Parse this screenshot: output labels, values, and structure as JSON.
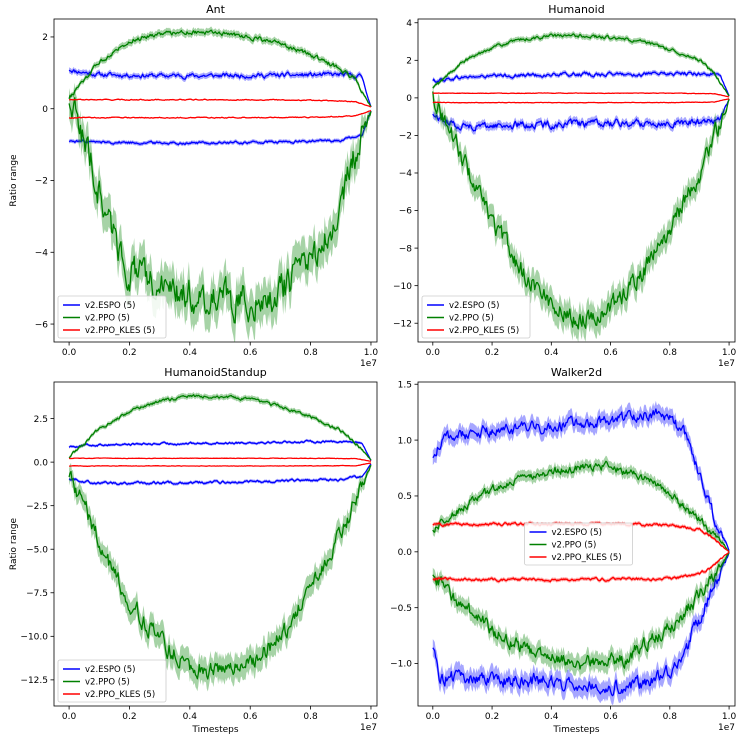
{
  "chart_data": [
    {
      "type": "line",
      "title": "Ant",
      "xlabel": "",
      "ylabel": "Ratio range",
      "x_scale_label": "1e7",
      "xlim": [
        -0.05,
        1.02
      ],
      "ylim": [
        -6.5,
        2.5
      ],
      "x_ticks": [
        0.0,
        0.2,
        0.4,
        0.6,
        0.8,
        1.0
      ],
      "x_tick_labels": [
        "0.0",
        "0.2",
        "0.4",
        "0.6",
        "0.8",
        "1.0"
      ],
      "y_ticks": [
        -6,
        -4,
        -2,
        0,
        2
      ],
      "y_tick_labels": [
        "−6",
        "−4",
        "−2",
        "0",
        "2"
      ],
      "legend_position": "lower-left",
      "series": [
        {
          "name": "v2.ESPO (5)",
          "color": "#0000ff",
          "band": "upper",
          "x": [
            0,
            0.02,
            0.1,
            0.3,
            0.5,
            0.7,
            0.9,
            0.97,
            1.0
          ],
          "y": [
            1.1,
            1.05,
            0.95,
            0.92,
            0.92,
            0.93,
            0.95,
            0.9,
            0.05
          ],
          "noise": 0.05
        },
        {
          "name": "v2.ESPO (5)",
          "color": "#0000ff",
          "band": "lower",
          "x": [
            0,
            0.1,
            0.3,
            0.5,
            0.7,
            0.9,
            0.97,
            1.0
          ],
          "y": [
            -0.9,
            -0.93,
            -0.95,
            -0.95,
            -0.93,
            -0.88,
            -0.75,
            -0.05
          ],
          "noise": 0.03
        },
        {
          "name": "v2.PPO (5)",
          "color": "#008000",
          "band": "upper",
          "x": [
            0,
            0.1,
            0.2,
            0.3,
            0.4,
            0.5,
            0.6,
            0.7,
            0.8,
            0.9,
            0.95,
            1.0
          ],
          "y": [
            0.3,
            1.3,
            1.9,
            2.1,
            2.15,
            2.1,
            2.0,
            1.8,
            1.5,
            1.1,
            0.8,
            0.05
          ],
          "noise": 0.05
        },
        {
          "name": "v2.PPO (5)",
          "color": "#008000",
          "band": "lower",
          "x": [
            0,
            0.05,
            0.1,
            0.15,
            0.2,
            0.3,
            0.4,
            0.5,
            0.6,
            0.7,
            0.8,
            0.85,
            0.9,
            0.95,
            1.0
          ],
          "y": [
            0.3,
            -0.8,
            -2.3,
            -3.6,
            -4.5,
            -5.0,
            -5.2,
            -5.3,
            -5.4,
            -5.1,
            -4.3,
            -3.6,
            -2.6,
            -1.2,
            -0.05
          ],
          "noise": 0.35
        },
        {
          "name": "v2.PPO_KLES (5)",
          "color": "#ff0000",
          "band": "upper",
          "x": [
            0,
            0.2,
            0.5,
            0.8,
            0.95,
            1.0
          ],
          "y": [
            0.25,
            0.25,
            0.25,
            0.24,
            0.2,
            0.05
          ],
          "noise": 0.01
        },
        {
          "name": "v2.PPO_KLES (5)",
          "color": "#ff0000",
          "band": "lower",
          "x": [
            0,
            0.2,
            0.5,
            0.8,
            0.95,
            1.0
          ],
          "y": [
            -0.25,
            -0.25,
            -0.25,
            -0.24,
            -0.2,
            -0.05
          ],
          "noise": 0.01
        }
      ],
      "legend": [
        {
          "label": "v2.ESPO (5)",
          "color": "#0000ff"
        },
        {
          "label": "v2.PPO (5)",
          "color": "#008000"
        },
        {
          "label": "v2.PPO_KLES (5)",
          "color": "#ff0000"
        }
      ]
    },
    {
      "type": "line",
      "title": "Humanoid",
      "xlabel": "",
      "ylabel": "",
      "x_scale_label": "1e7",
      "xlim": [
        -0.05,
        1.02
      ],
      "ylim": [
        -13.0,
        4.2
      ],
      "x_ticks": [
        0.0,
        0.2,
        0.4,
        0.6,
        0.8,
        1.0
      ],
      "x_tick_labels": [
        "0.0",
        "0.2",
        "0.4",
        "0.6",
        "0.8",
        "1.0"
      ],
      "y_ticks": [
        -12,
        -10,
        -8,
        -6,
        -4,
        -2,
        0,
        2,
        4
      ],
      "y_tick_labels": [
        "−12",
        "−10",
        "−8",
        "−6",
        "−4",
        "−2",
        "0",
        "2",
        "4"
      ],
      "legend_position": "lower-left",
      "series": [
        {
          "name": "v2.ESPO (5)",
          "color": "#0000ff",
          "band": "upper",
          "x": [
            0,
            0.1,
            0.3,
            0.5,
            0.7,
            0.9,
            0.97,
            1.0
          ],
          "y": [
            0.9,
            1.1,
            1.2,
            1.25,
            1.25,
            1.3,
            1.2,
            0.1
          ],
          "noise": 0.08
        },
        {
          "name": "v2.ESPO (5)",
          "color": "#0000ff",
          "band": "lower",
          "x": [
            0,
            0.05,
            0.1,
            0.3,
            0.5,
            0.7,
            0.9,
            0.97,
            1.0
          ],
          "y": [
            -0.9,
            -1.3,
            -1.5,
            -1.45,
            -1.4,
            -1.35,
            -1.3,
            -1.1,
            -0.1
          ],
          "noise": 0.15
        },
        {
          "name": "v2.PPO (5)",
          "color": "#008000",
          "band": "upper",
          "x": [
            0,
            0.1,
            0.2,
            0.3,
            0.4,
            0.5,
            0.6,
            0.7,
            0.8,
            0.9,
            0.95,
            1.0
          ],
          "y": [
            0.5,
            1.9,
            2.7,
            3.1,
            3.3,
            3.3,
            3.2,
            3.0,
            2.6,
            2.0,
            1.3,
            0.1
          ],
          "noise": 0.07
        },
        {
          "name": "v2.PPO (5)",
          "color": "#008000",
          "band": "lower",
          "x": [
            0,
            0.05,
            0.1,
            0.15,
            0.2,
            0.3,
            0.4,
            0.45,
            0.5,
            0.6,
            0.7,
            0.8,
            0.9,
            0.95,
            1.0
          ],
          "y": [
            0.2,
            -1.5,
            -3.2,
            -5.0,
            -6.6,
            -9.2,
            -10.9,
            -11.5,
            -11.8,
            -11.2,
            -9.5,
            -7.0,
            -4.0,
            -2.1,
            -0.1
          ],
          "noise": 0.4
        },
        {
          "name": "v2.PPO_KLES (5)",
          "color": "#ff0000",
          "band": "upper",
          "x": [
            0,
            0.2,
            0.5,
            0.8,
            0.95,
            1.0
          ],
          "y": [
            0.25,
            0.25,
            0.25,
            0.25,
            0.22,
            0.05
          ],
          "noise": 0.01
        },
        {
          "name": "v2.PPO_KLES (5)",
          "color": "#ff0000",
          "band": "lower",
          "x": [
            0,
            0.2,
            0.5,
            0.8,
            0.95,
            1.0
          ],
          "y": [
            -0.25,
            -0.25,
            -0.25,
            -0.25,
            -0.22,
            -0.05
          ],
          "noise": 0.01
        }
      ],
      "legend": [
        {
          "label": "v2.ESPO (5)",
          "color": "#0000ff"
        },
        {
          "label": "v2.PPO (5)",
          "color": "#008000"
        },
        {
          "label": "v2.PPO_KLES (5)",
          "color": "#ff0000"
        }
      ]
    },
    {
      "type": "line",
      "title": "HumanoidStandup",
      "xlabel": "Timesteps",
      "ylabel": "Ratio range",
      "x_scale_label": "1e7",
      "xlim": [
        -0.05,
        1.02
      ],
      "ylim": [
        -14.0,
        4.6
      ],
      "x_ticks": [
        0.0,
        0.2,
        0.4,
        0.6,
        0.8,
        1.0
      ],
      "x_tick_labels": [
        "0.0",
        "0.2",
        "0.4",
        "0.6",
        "0.8",
        "1.0"
      ],
      "y_ticks": [
        -12.5,
        -10.0,
        -7.5,
        -5.0,
        -2.5,
        0.0,
        2.5
      ],
      "y_tick_labels": [
        "−12.5",
        "−10.0",
        "−7.5",
        "−5.0",
        "−2.5",
        "0.0",
        "2.5"
      ],
      "legend_position": "lower-left",
      "series": [
        {
          "name": "v2.ESPO (5)",
          "color": "#0000ff",
          "band": "upper",
          "x": [
            0,
            0.1,
            0.3,
            0.5,
            0.7,
            0.9,
            0.97,
            1.0
          ],
          "y": [
            0.9,
            1.0,
            1.05,
            1.1,
            1.15,
            1.2,
            1.1,
            0.1
          ],
          "noise": 0.05
        },
        {
          "name": "v2.ESPO (5)",
          "color": "#0000ff",
          "band": "lower",
          "x": [
            0,
            0.05,
            0.1,
            0.3,
            0.5,
            0.7,
            0.9,
            0.97,
            1.0
          ],
          "y": [
            -0.9,
            -1.1,
            -1.2,
            -1.2,
            -1.15,
            -1.1,
            -1.0,
            -0.8,
            -0.1
          ],
          "noise": 0.06
        },
        {
          "name": "v2.PPO (5)",
          "color": "#008000",
          "band": "upper",
          "x": [
            0,
            0.1,
            0.2,
            0.3,
            0.4,
            0.5,
            0.6,
            0.7,
            0.8,
            0.9,
            0.95,
            1.0
          ],
          "y": [
            0.3,
            1.9,
            2.9,
            3.5,
            3.8,
            3.75,
            3.6,
            3.2,
            2.6,
            1.8,
            1.1,
            0.1
          ],
          "noise": 0.07
        },
        {
          "name": "v2.PPO (5)",
          "color": "#008000",
          "band": "lower",
          "x": [
            0,
            0.05,
            0.1,
            0.15,
            0.2,
            0.3,
            0.4,
            0.45,
            0.5,
            0.6,
            0.7,
            0.8,
            0.9,
            0.95,
            1.0
          ],
          "y": [
            -0.5,
            -2.5,
            -4.6,
            -6.4,
            -8.0,
            -10.3,
            -11.6,
            -11.9,
            -12.0,
            -11.5,
            -10.0,
            -7.4,
            -4.2,
            -2.2,
            -0.1
          ],
          "noise": 0.4
        },
        {
          "name": "v2.PPO_KLES (5)",
          "color": "#ff0000",
          "band": "upper",
          "x": [
            0,
            0.2,
            0.5,
            0.8,
            0.95,
            1.0
          ],
          "y": [
            0.22,
            0.22,
            0.22,
            0.22,
            0.2,
            0.05
          ],
          "noise": 0.01
        },
        {
          "name": "v2.PPO_KLES (5)",
          "color": "#ff0000",
          "band": "lower",
          "x": [
            0,
            0.2,
            0.5,
            0.8,
            0.95,
            1.0
          ],
          "y": [
            -0.22,
            -0.22,
            -0.22,
            -0.22,
            -0.2,
            -0.05
          ],
          "noise": 0.01
        }
      ],
      "legend": [
        {
          "label": "v2.ESPO (5)",
          "color": "#0000ff"
        },
        {
          "label": "v2.PPO (5)",
          "color": "#008000"
        },
        {
          "label": "v2.PPO_KLES (5)",
          "color": "#ff0000"
        }
      ]
    },
    {
      "type": "line",
      "title": "Walker2d",
      "xlabel": "Timesteps",
      "ylabel": "",
      "x_scale_label": "1e7",
      "xlim": [
        -0.05,
        1.02
      ],
      "ylim": [
        -1.38,
        1.52
      ],
      "x_ticks": [
        0.0,
        0.2,
        0.4,
        0.6,
        0.8,
        1.0
      ],
      "x_tick_labels": [
        "0.0",
        "0.2",
        "0.4",
        "0.6",
        "0.8",
        "1.0"
      ],
      "y_ticks": [
        -1.0,
        -0.5,
        0.0,
        0.5,
        1.0,
        1.5
      ],
      "y_tick_labels": [
        "−1.0",
        "−0.5",
        "0.0",
        "0.5",
        "1.0",
        "1.5"
      ],
      "legend_position": "center",
      "series": [
        {
          "name": "v2.ESPO (5)",
          "color": "#0000ff",
          "band": "upper",
          "x": [
            0,
            0.02,
            0.05,
            0.1,
            0.2,
            0.3,
            0.4,
            0.5,
            0.6,
            0.7,
            0.75,
            0.8,
            0.85,
            0.9,
            0.95,
            1.0
          ],
          "y": [
            0.85,
            0.95,
            1.02,
            1.05,
            1.08,
            1.1,
            1.12,
            1.15,
            1.18,
            1.22,
            1.25,
            1.2,
            1.05,
            0.7,
            0.3,
            0.0
          ],
          "noise": 0.04
        },
        {
          "name": "v2.ESPO (5)",
          "color": "#0000ff",
          "band": "lower",
          "x": [
            0,
            0.02,
            0.05,
            0.1,
            0.2,
            0.3,
            0.4,
            0.5,
            0.6,
            0.7,
            0.8,
            0.85,
            0.9,
            0.95,
            1.0
          ],
          "y": [
            -0.85,
            -1.1,
            -1.12,
            -1.13,
            -1.15,
            -1.15,
            -1.16,
            -1.17,
            -1.2,
            -1.18,
            -1.05,
            -0.9,
            -0.6,
            -0.3,
            0.0
          ],
          "noise": 0.05
        },
        {
          "name": "v2.PPO (5)",
          "color": "#008000",
          "band": "upper",
          "x": [
            0,
            0.05,
            0.1,
            0.2,
            0.3,
            0.4,
            0.5,
            0.55,
            0.6,
            0.7,
            0.8,
            0.85,
            0.9,
            0.95,
            1.0
          ],
          "y": [
            0.2,
            0.3,
            0.4,
            0.55,
            0.65,
            0.72,
            0.76,
            0.78,
            0.76,
            0.68,
            0.52,
            0.4,
            0.28,
            0.15,
            0.0
          ],
          "noise": 0.03
        },
        {
          "name": "v2.PPO (5)",
          "color": "#008000",
          "band": "lower",
          "x": [
            0,
            0.05,
            0.1,
            0.2,
            0.3,
            0.4,
            0.5,
            0.6,
            0.65,
            0.7,
            0.8,
            0.85,
            0.9,
            0.95,
            1.0
          ],
          "y": [
            -0.2,
            -0.35,
            -0.5,
            -0.7,
            -0.85,
            -0.95,
            -1.0,
            -0.98,
            -0.95,
            -0.85,
            -0.68,
            -0.55,
            -0.4,
            -0.2,
            0.0
          ],
          "noise": 0.05
        },
        {
          "name": "v2.PPO_KLES (5)",
          "color": "#ff0000",
          "band": "upper",
          "x": [
            0,
            0.2,
            0.5,
            0.8,
            0.9,
            0.95,
            1.0
          ],
          "y": [
            0.24,
            0.25,
            0.25,
            0.24,
            0.2,
            0.12,
            0.0
          ],
          "noise": 0.01
        },
        {
          "name": "v2.PPO_KLES (5)",
          "color": "#ff0000",
          "band": "lower",
          "x": [
            0,
            0.2,
            0.5,
            0.8,
            0.9,
            0.95,
            1.0
          ],
          "y": [
            -0.24,
            -0.25,
            -0.25,
            -0.24,
            -0.2,
            -0.12,
            0.0
          ],
          "noise": 0.01
        }
      ],
      "legend": [
        {
          "label": "v2.ESPO (5)",
          "color": "#0000ff"
        },
        {
          "label": "v2.PPO (5)",
          "color": "#008000"
        },
        {
          "label": "v2.PPO_KLES (5)",
          "color": "#ff0000"
        }
      ]
    }
  ]
}
